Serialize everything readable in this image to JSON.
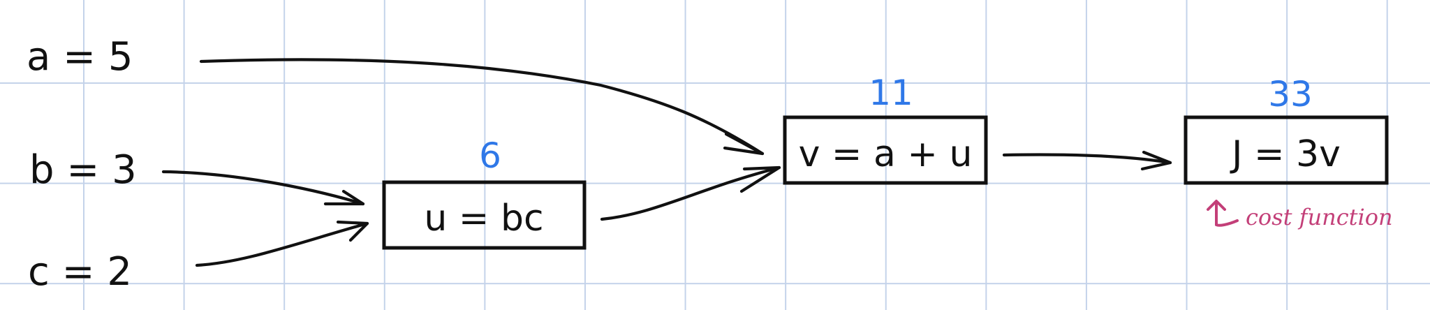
{
  "inputs": [
    {
      "id": "a",
      "label": "a = 5"
    },
    {
      "id": "b",
      "label": "b = 3"
    },
    {
      "id": "c",
      "label": "c = 2"
    }
  ],
  "nodes": [
    {
      "id": "u",
      "expression": "u = bc",
      "value": "6"
    },
    {
      "id": "v",
      "expression": "v = a + u",
      "value": "11"
    },
    {
      "id": "J",
      "expression": "J = 3v",
      "value": "33"
    }
  ],
  "annotation": {
    "text": "cost function"
  },
  "colors": {
    "ink": "#111111",
    "value": "#2f78e8",
    "annotation": "#c33f78",
    "grid": "#c4d3ea",
    "paper": "#ffffff"
  }
}
